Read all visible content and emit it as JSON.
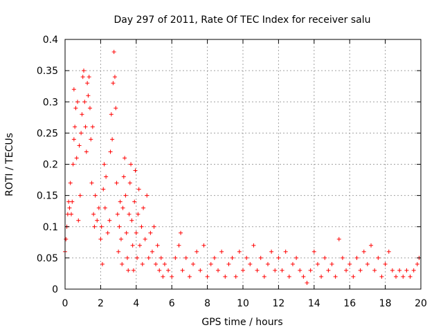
{
  "chart_data": {
    "type": "scatter",
    "title": "Day 297 of 2011, Rate Of TEC Index for receiver salu",
    "xlabel": "GPS time / hours",
    "ylabel": "ROTI / TECUs",
    "xlim": [
      0,
      20
    ],
    "ylim": [
      0,
      0.4
    ],
    "x_ticks": [
      "0",
      "2",
      "4",
      "6",
      "8",
      "10",
      "12",
      "14",
      "16",
      "18",
      "20"
    ],
    "y_ticks": [
      "0",
      "0.05",
      "0.1",
      "0.15",
      "0.2",
      "0.25",
      "0.3",
      "0.35",
      "0.4"
    ],
    "grid": true,
    "marker": "+",
    "color": "#ff0000",
    "series": [
      {
        "points": [
          [
            0.0,
            0.06
          ],
          [
            0.05,
            0.08
          ],
          [
            0.1,
            0.1
          ],
          [
            0.15,
            0.12
          ],
          [
            0.2,
            0.14
          ],
          [
            0.25,
            0.13
          ],
          [
            0.3,
            0.17
          ],
          [
            0.35,
            0.12
          ],
          [
            0.4,
            0.14
          ],
          [
            0.45,
            0.2
          ],
          [
            0.5,
            0.24
          ],
          [
            0.5,
            0.32
          ],
          [
            0.55,
            0.26
          ],
          [
            0.6,
            0.29
          ],
          [
            0.65,
            0.21
          ],
          [
            0.7,
            0.3
          ],
          [
            0.75,
            0.11
          ],
          [
            0.8,
            0.23
          ],
          [
            0.85,
            0.15
          ],
          [
            0.9,
            0.25
          ],
          [
            0.95,
            0.28
          ],
          [
            1.0,
            0.34
          ],
          [
            1.05,
            0.35
          ],
          [
            1.1,
            0.3
          ],
          [
            1.15,
            0.26
          ],
          [
            1.2,
            0.22
          ],
          [
            1.25,
            0.33
          ],
          [
            1.3,
            0.31
          ],
          [
            1.35,
            0.34
          ],
          [
            1.4,
            0.29
          ],
          [
            1.45,
            0.24
          ],
          [
            1.5,
            0.17
          ],
          [
            1.55,
            0.26
          ],
          [
            1.6,
            0.12
          ],
          [
            1.65,
            0.1
          ],
          [
            1.7,
            0.15
          ],
          [
            1.8,
            0.11
          ],
          [
            1.9,
            0.13
          ],
          [
            2.0,
            0.08
          ],
          [
            2.05,
            0.1
          ],
          [
            2.1,
            0.04
          ],
          [
            2.15,
            0.16
          ],
          [
            2.2,
            0.2
          ],
          [
            2.25,
            0.13
          ],
          [
            2.3,
            0.18
          ],
          [
            2.4,
            0.09
          ],
          [
            2.5,
            0.11
          ],
          [
            2.55,
            0.22
          ],
          [
            2.6,
            0.28
          ],
          [
            2.65,
            0.24
          ],
          [
            2.7,
            0.33
          ],
          [
            2.75,
            0.38
          ],
          [
            2.8,
            0.34
          ],
          [
            2.85,
            0.29
          ],
          [
            2.9,
            0.17
          ],
          [
            2.95,
            0.12
          ],
          [
            3.0,
            0.06
          ],
          [
            3.05,
            0.1
          ],
          [
            3.1,
            0.14
          ],
          [
            3.15,
            0.08
          ],
          [
            3.2,
            0.04
          ],
          [
            3.25,
            0.13
          ],
          [
            3.3,
            0.18
          ],
          [
            3.35,
            0.21
          ],
          [
            3.4,
            0.15
          ],
          [
            3.45,
            0.09
          ],
          [
            3.5,
            0.05
          ],
          [
            3.55,
            0.03
          ],
          [
            3.6,
            0.12
          ],
          [
            3.65,
            0.17
          ],
          [
            3.7,
            0.2
          ],
          [
            3.75,
            0.11
          ],
          [
            3.8,
            0.07
          ],
          [
            3.85,
            0.03
          ],
          [
            3.9,
            0.14
          ],
          [
            3.95,
            0.19
          ],
          [
            4.0,
            0.09
          ],
          [
            4.05,
            0.05
          ],
          [
            4.1,
            0.12
          ],
          [
            4.15,
            0.16
          ],
          [
            4.2,
            0.07
          ],
          [
            4.3,
            0.1
          ],
          [
            4.35,
            0.04
          ],
          [
            4.4,
            0.13
          ],
          [
            4.5,
            0.08
          ],
          [
            4.6,
            0.15
          ],
          [
            4.7,
            0.05
          ],
          [
            4.8,
            0.09
          ],
          [
            4.9,
            0.06
          ],
          [
            5.0,
            0.1
          ],
          [
            5.1,
            0.04
          ],
          [
            5.2,
            0.07
          ],
          [
            5.3,
            0.03
          ],
          [
            5.4,
            0.05
          ],
          [
            5.5,
            0.02
          ],
          [
            5.6,
            0.04
          ],
          [
            5.8,
            0.03
          ],
          [
            6.0,
            0.02
          ],
          [
            6.2,
            0.05
          ],
          [
            6.4,
            0.07
          ],
          [
            6.5,
            0.09
          ],
          [
            6.6,
            0.03
          ],
          [
            6.8,
            0.05
          ],
          [
            7.0,
            0.02
          ],
          [
            7.2,
            0.04
          ],
          [
            7.4,
            0.06
          ],
          [
            7.6,
            0.03
          ],
          [
            7.8,
            0.07
          ],
          [
            8.0,
            0.02
          ],
          [
            8.2,
            0.04
          ],
          [
            8.4,
            0.05
          ],
          [
            8.6,
            0.03
          ],
          [
            8.8,
            0.06
          ],
          [
            9.0,
            0.02
          ],
          [
            9.2,
            0.04
          ],
          [
            9.4,
            0.05
          ],
          [
            9.6,
            0.02
          ],
          [
            9.8,
            0.06
          ],
          [
            10.0,
            0.03
          ],
          [
            10.2,
            0.05
          ],
          [
            10.4,
            0.04
          ],
          [
            10.6,
            0.07
          ],
          [
            10.8,
            0.03
          ],
          [
            11.0,
            0.05
          ],
          [
            11.2,
            0.02
          ],
          [
            11.4,
            0.04
          ],
          [
            11.6,
            0.06
          ],
          [
            11.8,
            0.03
          ],
          [
            12.0,
            0.05
          ],
          [
            12.2,
            0.03
          ],
          [
            12.4,
            0.06
          ],
          [
            12.6,
            0.02
          ],
          [
            12.8,
            0.04
          ],
          [
            13.0,
            0.05
          ],
          [
            13.2,
            0.03
          ],
          [
            13.4,
            0.02
          ],
          [
            13.6,
            0.01
          ],
          [
            13.8,
            0.03
          ],
          [
            14.0,
            0.06
          ],
          [
            14.2,
            0.04
          ],
          [
            14.4,
            0.02
          ],
          [
            14.6,
            0.05
          ],
          [
            14.8,
            0.03
          ],
          [
            15.0,
            0.04
          ],
          [
            15.2,
            0.02
          ],
          [
            15.4,
            0.08
          ],
          [
            15.6,
            0.05
          ],
          [
            15.8,
            0.03
          ],
          [
            16.0,
            0.04
          ],
          [
            16.2,
            0.02
          ],
          [
            16.4,
            0.05
          ],
          [
            16.6,
            0.03
          ],
          [
            16.8,
            0.06
          ],
          [
            17.0,
            0.04
          ],
          [
            17.2,
            0.07
          ],
          [
            17.4,
            0.03
          ],
          [
            17.6,
            0.05
          ],
          [
            17.8,
            0.02
          ],
          [
            18.0,
            0.04
          ],
          [
            18.2,
            0.06
          ],
          [
            18.4,
            0.03
          ],
          [
            18.6,
            0.02
          ],
          [
            18.8,
            0.03
          ],
          [
            19.0,
            0.02
          ],
          [
            19.2,
            0.03
          ],
          [
            19.4,
            0.02
          ],
          [
            19.6,
            0.03
          ],
          [
            19.8,
            0.04
          ],
          [
            19.9,
            0.05
          ]
        ]
      }
    ]
  }
}
